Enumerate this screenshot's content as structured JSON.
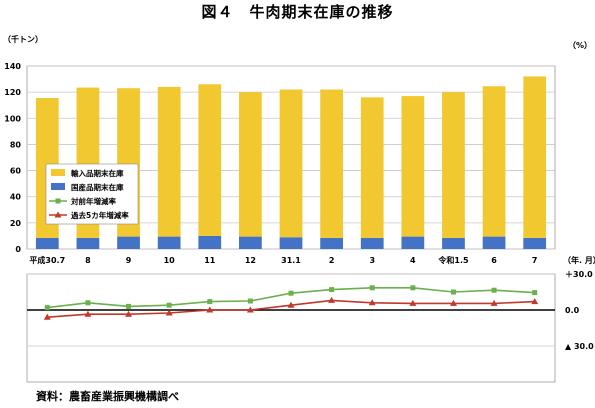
{
  "title": "図４　牛肉期末在庫の推移",
  "source": "資料：農畜産業振興機構調べ",
  "chart_data": [
    {
      "type": "bar",
      "stacked": true,
      "ylabel": "（千トン）",
      "xunit": "（年. 月）",
      "ylim": [
        0,
        140
      ],
      "yticks": [
        0,
        20,
        40,
        60,
        80,
        100,
        120,
        140
      ],
      "grid": true,
      "legend_position": "left",
      "categories": [
        "平成30.7",
        "8",
        "9",
        "10",
        "11",
        "12",
        "31.1",
        "2",
        "3",
        "4",
        "令和1.5",
        "6",
        "7"
      ],
      "series": [
        {
          "name": "国産品期末在庫",
          "color": "#4472c4",
          "values": [
            8.5,
            8.5,
            9.5,
            9.5,
            10,
            9.5,
            9,
            8.5,
            8.5,
            9.5,
            8.5,
            9.5,
            8.5
          ]
        },
        {
          "name": "輸入品期末在庫",
          "color": "#f2c830",
          "values": [
            107,
            115,
            113.5,
            114.5,
            116,
            110.5,
            113,
            113.5,
            107.5,
            107.5,
            111.5,
            115,
            123.5
          ]
        }
      ]
    },
    {
      "type": "line",
      "ylabel": "（%）",
      "yticks": [
        30,
        0,
        -30
      ],
      "yticklabels": [
        "＋30.0",
        "0.0",
        "▲ 30.0"
      ],
      "ylim": [
        -60,
        30
      ],
      "categories": [
        "平成30.7",
        "8",
        "9",
        "10",
        "11",
        "12",
        "31.1",
        "2",
        "3",
        "4",
        "令和1.5",
        "6",
        "7"
      ],
      "series": [
        {
          "name": "対前年増減率",
          "color": "#6ab04c",
          "marker": "square",
          "values": [
            2,
            6,
            3,
            4,
            7,
            7.5,
            14,
            17,
            18.5,
            18.5,
            15,
            16.5,
            14.5
          ]
        },
        {
          "name": "過去5カ年増減率",
          "color": "#c0392b",
          "marker": "triangle",
          "values": [
            -6,
            -3.5,
            -3.5,
            -2.5,
            0,
            0,
            4,
            8,
            6,
            5.5,
            5.5,
            5.5,
            7
          ]
        }
      ]
    }
  ]
}
